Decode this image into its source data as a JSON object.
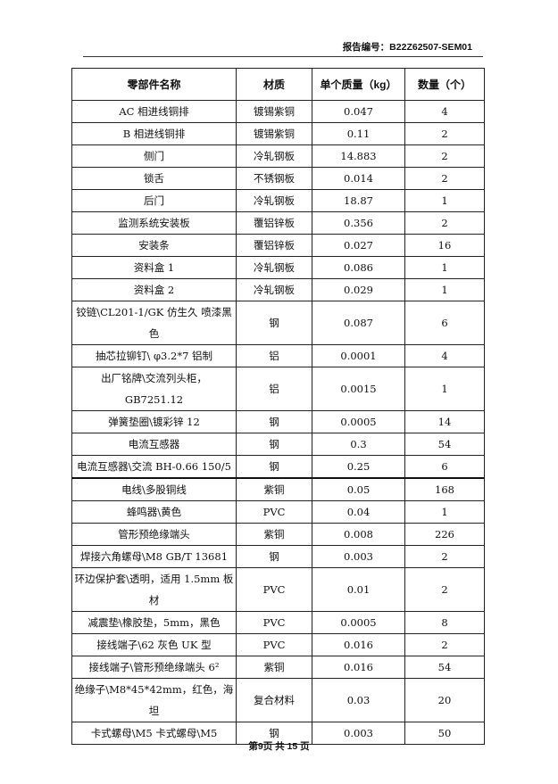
{
  "header": {
    "report_no": "报告编号：B22Z62507-SEM01"
  },
  "table": {
    "columns": [
      "零部件名称",
      "材质",
      "单个质量（kg）",
      "数量（个）"
    ],
    "rows": [
      [
        "AC 相进线铜排",
        "镀锡紫铜",
        "0.047",
        "4"
      ],
      [
        "B 相进线铜排",
        "镀锡紫铜",
        "0.11",
        "2"
      ],
      [
        "侧门",
        "冷轧钢板",
        "14.883",
        "2"
      ],
      [
        "锁舌",
        "不锈钢板",
        "0.014",
        "2"
      ],
      [
        "后门",
        "冷轧钢板",
        "18.87",
        "1"
      ],
      [
        "监测系统安装板",
        "覆铝锌板",
        "0.356",
        "2"
      ],
      [
        "安装条",
        "覆铝锌板",
        "0.027",
        "16"
      ],
      [
        "资料盒 1",
        "冷轧钢板",
        "0.086",
        "1"
      ],
      [
        "资料盒 2",
        "冷轧钢板",
        "0.029",
        "1"
      ],
      [
        "铰链\\CL201-1/GK 仿生久 喷漆黑色",
        "钢",
        "0.087",
        "6"
      ],
      [
        "抽芯拉铆钉\\ φ3.2*7 铝制",
        "铝",
        "0.0001",
        "4"
      ],
      [
        "出厂铭牌\\交流列头柜，GB7251.12",
        "铝",
        "0.0015",
        "1"
      ],
      [
        "弹簧垫圈\\镀彩锌 12",
        "钢",
        "0.0005",
        "14"
      ],
      [
        "电流互感器",
        "钢",
        "0.3",
        "54"
      ],
      [
        "电流互感器\\交流 BH-0.66 150/5",
        "钢",
        "0.25",
        "6"
      ],
      [
        "电线\\多股铜线",
        "紫铜",
        "0.05",
        "168"
      ],
      [
        "蜂鸣器\\黄色",
        "PVC",
        "0.04",
        "1"
      ],
      [
        "管形预绝缘端头",
        "紫铜",
        "0.008",
        "226"
      ],
      [
        "焊接六角螺母\\M8 GB/T 13681",
        "钢",
        "0.003",
        "2"
      ],
      [
        "环边保护套\\透明，适用 1.5mm 板材",
        "PVC",
        "0.01",
        "2"
      ],
      [
        "减震垫\\橡胶垫，5mm，黑色",
        "PVC",
        "0.0005",
        "8"
      ],
      [
        "接线端子\\62 灰色 UK 型",
        "PVC",
        "0.016",
        "2"
      ],
      [
        "接线端子\\管形预绝缘端头 6²",
        "紫铜",
        "0.016",
        "54"
      ],
      [
        "绝缘子\\M8*45*42mm，红色，海坦",
        "复合材料",
        "0.03",
        "20"
      ],
      [
        "卡式螺母\\M5 卡式螺母\\M5",
        "钢",
        "0.003",
        "50"
      ]
    ]
  },
  "footer": {
    "page": "第9页 共 15 页"
  }
}
